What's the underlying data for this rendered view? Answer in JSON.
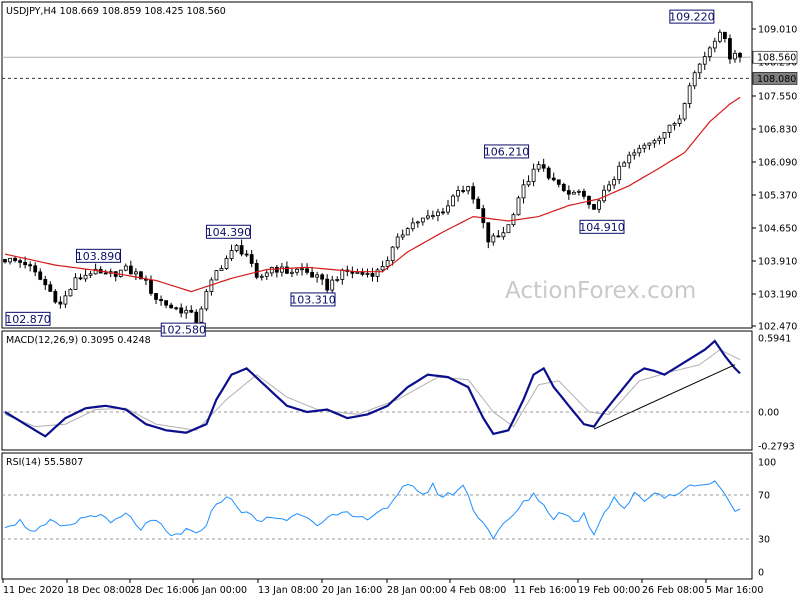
{
  "chart_data": [
    {
      "type": "candlestick",
      "header": "USDJPY,H4  108.669 108.859 108.425 108.560",
      "price_levels": {
        "last": "108.560",
        "reference": "108.080"
      },
      "ylim": [
        102.47,
        109.47
      ],
      "y_ticks": [
        "109.010",
        "108.290",
        "107.550",
        "106.830",
        "106.090",
        "105.370",
        "104.650",
        "103.910",
        "103.190",
        "102.470"
      ],
      "x_ticks": [
        "11 Dec 2020",
        "18 Dec 08:00",
        "28 Dec 16:00",
        "6 Jan 00:00",
        "13 Jan 08:00",
        "20 Jan 16:00",
        "28 Jan 00:00",
        "4 Feb 08:00",
        "11 Feb 16:00",
        "19 Feb 00:00",
        "26 Feb 08:00",
        "5 Mar 16:00"
      ],
      "callouts": [
        {
          "label": "102.870",
          "bar": 0,
          "value": 102.87
        },
        {
          "label": "103.890",
          "bar": 15,
          "value": 103.89
        },
        {
          "label": "102.580",
          "bar": 37,
          "value": 102.58
        },
        {
          "label": "104.390",
          "bar": 42,
          "value": 104.39
        },
        {
          "label": "103.310",
          "bar": 58,
          "value": 103.31
        },
        {
          "label": "106.210",
          "bar": 104,
          "value": 106.21
        },
        {
          "label": "104.910",
          "bar": 117,
          "value": 104.91
        },
        {
          "label": "109.220",
          "bar": 142,
          "value": 109.22
        }
      ],
      "close_path": [
        [
          0,
          103.98
        ],
        [
          4,
          103.9
        ],
        [
          8,
          103.4
        ],
        [
          11,
          102.95
        ],
        [
          14,
          103.5
        ],
        [
          17,
          103.7
        ],
        [
          20,
          103.6
        ],
        [
          24,
          103.75
        ],
        [
          27,
          103.6
        ],
        [
          30,
          103.1
        ],
        [
          33,
          102.9
        ],
        [
          36,
          102.8
        ],
        [
          38,
          102.6
        ],
        [
          40,
          103.2
        ],
        [
          42,
          103.7
        ],
        [
          44,
          104.0
        ],
        [
          46,
          104.25
        ],
        [
          48,
          104.1
        ],
        [
          50,
          103.5
        ],
        [
          53,
          103.8
        ],
        [
          56,
          103.7
        ],
        [
          59,
          103.75
        ],
        [
          62,
          103.55
        ],
        [
          64,
          103.35
        ],
        [
          66,
          103.6
        ],
        [
          68,
          103.7
        ],
        [
          71,
          103.65
        ],
        [
          74,
          103.7
        ],
        [
          76,
          104.0
        ],
        [
          78,
          104.4
        ],
        [
          80,
          104.75
        ],
        [
          82,
          104.85
        ],
        [
          85,
          104.95
        ],
        [
          88,
          105.2
        ],
        [
          90,
          105.6
        ],
        [
          92,
          105.55
        ],
        [
          94,
          105.1
        ],
        [
          96,
          104.4
        ],
        [
          98,
          104.5
        ],
        [
          100,
          104.75
        ],
        [
          102,
          105.4
        ],
        [
          104,
          105.8
        ],
        [
          106,
          106.1
        ],
        [
          108,
          105.9
        ],
        [
          110,
          105.6
        ],
        [
          112,
          105.45
        ],
        [
          114,
          105.5
        ],
        [
          116,
          105.15
        ],
        [
          118,
          105.25
        ],
        [
          120,
          105.7
        ],
        [
          122,
          106.0
        ],
        [
          124,
          106.3
        ],
        [
          126,
          106.45
        ],
        [
          128,
          106.65
        ],
        [
          130,
          106.8
        ],
        [
          132,
          106.95
        ],
        [
          134,
          107.2
        ],
        [
          136,
          108.0
        ],
        [
          138,
          108.4
        ],
        [
          140,
          108.8
        ],
        [
          141,
          109.0
        ],
        [
          142,
          109.2
        ],
        [
          143,
          108.9
        ],
        [
          144,
          108.6
        ],
        [
          145,
          108.7
        ],
        [
          146,
          108.56
        ]
      ],
      "ma_path": [
        [
          0,
          104.1
        ],
        [
          10,
          103.85
        ],
        [
          20,
          103.7
        ],
        [
          30,
          103.5
        ],
        [
          37,
          103.25
        ],
        [
          45,
          103.55
        ],
        [
          52,
          103.75
        ],
        [
          60,
          103.8
        ],
        [
          70,
          103.7
        ],
        [
          75,
          103.7
        ],
        [
          80,
          104.15
        ],
        [
          87,
          104.6
        ],
        [
          93,
          104.95
        ],
        [
          100,
          104.85
        ],
        [
          106,
          104.95
        ],
        [
          112,
          105.2
        ],
        [
          118,
          105.35
        ],
        [
          124,
          105.65
        ],
        [
          130,
          106.05
        ],
        [
          135,
          106.4
        ],
        [
          140,
          107.1
        ],
        [
          144,
          107.5
        ],
        [
          146,
          107.65
        ]
      ]
    },
    {
      "type": "line",
      "header": "MACD(12,26,9) 0.3095 0.4248",
      "ylim": [
        -0.3,
        0.6
      ],
      "y_ticks": [
        "0.5941",
        "0.00",
        "-0.2793"
      ],
      "series": [
        {
          "values": [
            [
              0,
              0.0
            ],
            [
              4,
              -0.1
            ],
            [
              8,
              -0.2
            ],
            [
              12,
              -0.05
            ],
            [
              16,
              0.03
            ],
            [
              20,
              0.05
            ],
            [
              24,
              0.02
            ],
            [
              28,
              -0.1
            ],
            [
              32,
              -0.15
            ],
            [
              36,
              -0.17
            ],
            [
              40,
              -0.1
            ],
            [
              42,
              0.1
            ],
            [
              45,
              0.3
            ],
            [
              48,
              0.35
            ],
            [
              52,
              0.2
            ],
            [
              56,
              0.05
            ],
            [
              60,
              0.0
            ],
            [
              64,
              0.02
            ],
            [
              68,
              -0.05
            ],
            [
              72,
              -0.02
            ],
            [
              76,
              0.05
            ],
            [
              80,
              0.2
            ],
            [
              84,
              0.3
            ],
            [
              88,
              0.28
            ],
            [
              92,
              0.2
            ],
            [
              95,
              -0.05
            ],
            [
              97,
              -0.18
            ],
            [
              100,
              -0.15
            ],
            [
              103,
              0.1
            ],
            [
              105,
              0.3
            ],
            [
              107,
              0.35
            ],
            [
              109,
              0.2
            ],
            [
              111,
              0.1
            ],
            [
              113,
              0.0
            ],
            [
              115,
              -0.1
            ],
            [
              117,
              -0.12
            ],
            [
              119,
              0.0
            ],
            [
              121,
              0.1
            ],
            [
              123,
              0.2
            ],
            [
              125,
              0.3
            ],
            [
              127,
              0.35
            ],
            [
              129,
              0.33
            ],
            [
              131,
              0.3
            ],
            [
              133,
              0.35
            ],
            [
              135,
              0.4
            ],
            [
              137,
              0.45
            ],
            [
              139,
              0.5
            ],
            [
              141,
              0.57
            ],
            [
              143,
              0.45
            ],
            [
              145,
              0.35
            ],
            [
              146,
              0.31
            ]
          ]
        },
        {
          "values": [
            [
              0,
              -0.02
            ],
            [
              6,
              -0.12
            ],
            [
              12,
              -0.1
            ],
            [
              18,
              0.02
            ],
            [
              24,
              0.03
            ],
            [
              30,
              -0.1
            ],
            [
              38,
              -0.15
            ],
            [
              44,
              0.1
            ],
            [
              50,
              0.3
            ],
            [
              56,
              0.12
            ],
            [
              62,
              0.02
            ],
            [
              70,
              -0.02
            ],
            [
              78,
              0.1
            ],
            [
              86,
              0.28
            ],
            [
              92,
              0.26
            ],
            [
              97,
              0.0
            ],
            [
              101,
              -0.12
            ],
            [
              106,
              0.22
            ],
            [
              110,
              0.25
            ],
            [
              116,
              0.0
            ],
            [
              120,
              -0.02
            ],
            [
              126,
              0.25
            ],
            [
              132,
              0.32
            ],
            [
              138,
              0.38
            ],
            [
              142,
              0.5
            ],
            [
              146,
              0.42
            ]
          ]
        }
      ],
      "trendline": [
        [
          117,
          -0.14
        ],
        [
          145,
          0.38
        ]
      ]
    },
    {
      "type": "line",
      "header": "RSI(14) 55.5807",
      "ylim": [
        0,
        100
      ],
      "y_ticks": [
        "100",
        "70",
        "30",
        "0"
      ],
      "levels": [
        70,
        30
      ],
      "values": [
        [
          0,
          43
        ],
        [
          3,
          46
        ],
        [
          6,
          36
        ],
        [
          9,
          45
        ],
        [
          12,
          40
        ],
        [
          15,
          48
        ],
        [
          18,
          53
        ],
        [
          21,
          44
        ],
        [
          24,
          52
        ],
        [
          27,
          40
        ],
        [
          30,
          46
        ],
        [
          33,
          32
        ],
        [
          36,
          38
        ],
        [
          38,
          33
        ],
        [
          40,
          45
        ],
        [
          42,
          62
        ],
        [
          44,
          70
        ],
        [
          46,
          58
        ],
        [
          48,
          55
        ],
        [
          50,
          45
        ],
        [
          53,
          50
        ],
        [
          56,
          48
        ],
        [
          59,
          54
        ],
        [
          62,
          45
        ],
        [
          65,
          50
        ],
        [
          68,
          52
        ],
        [
          71,
          48
        ],
        [
          74,
          55
        ],
        [
          77,
          62
        ],
        [
          79,
          75
        ],
        [
          81,
          80
        ],
        [
          83,
          70
        ],
        [
          85,
          78
        ],
        [
          87,
          68
        ],
        [
          89,
          72
        ],
        [
          91,
          79
        ],
        [
          93,
          58
        ],
        [
          95,
          45
        ],
        [
          97,
          32
        ],
        [
          99,
          42
        ],
        [
          101,
          52
        ],
        [
          103,
          62
        ],
        [
          105,
          72
        ],
        [
          107,
          60
        ],
        [
          109,
          50
        ],
        [
          111,
          55
        ],
        [
          113,
          45
        ],
        [
          115,
          52
        ],
        [
          117,
          35
        ],
        [
          119,
          55
        ],
        [
          121,
          68
        ],
        [
          123,
          58
        ],
        [
          125,
          70
        ],
        [
          127,
          65
        ],
        [
          129,
          73
        ],
        [
          131,
          68
        ],
        [
          133,
          72
        ],
        [
          135,
          75
        ],
        [
          137,
          80
        ],
        [
          139,
          78
        ],
        [
          141,
          85
        ],
        [
          143,
          70
        ],
        [
          145,
          58
        ],
        [
          146,
          55
        ]
      ]
    }
  ],
  "watermark": "ActionForex.com"
}
